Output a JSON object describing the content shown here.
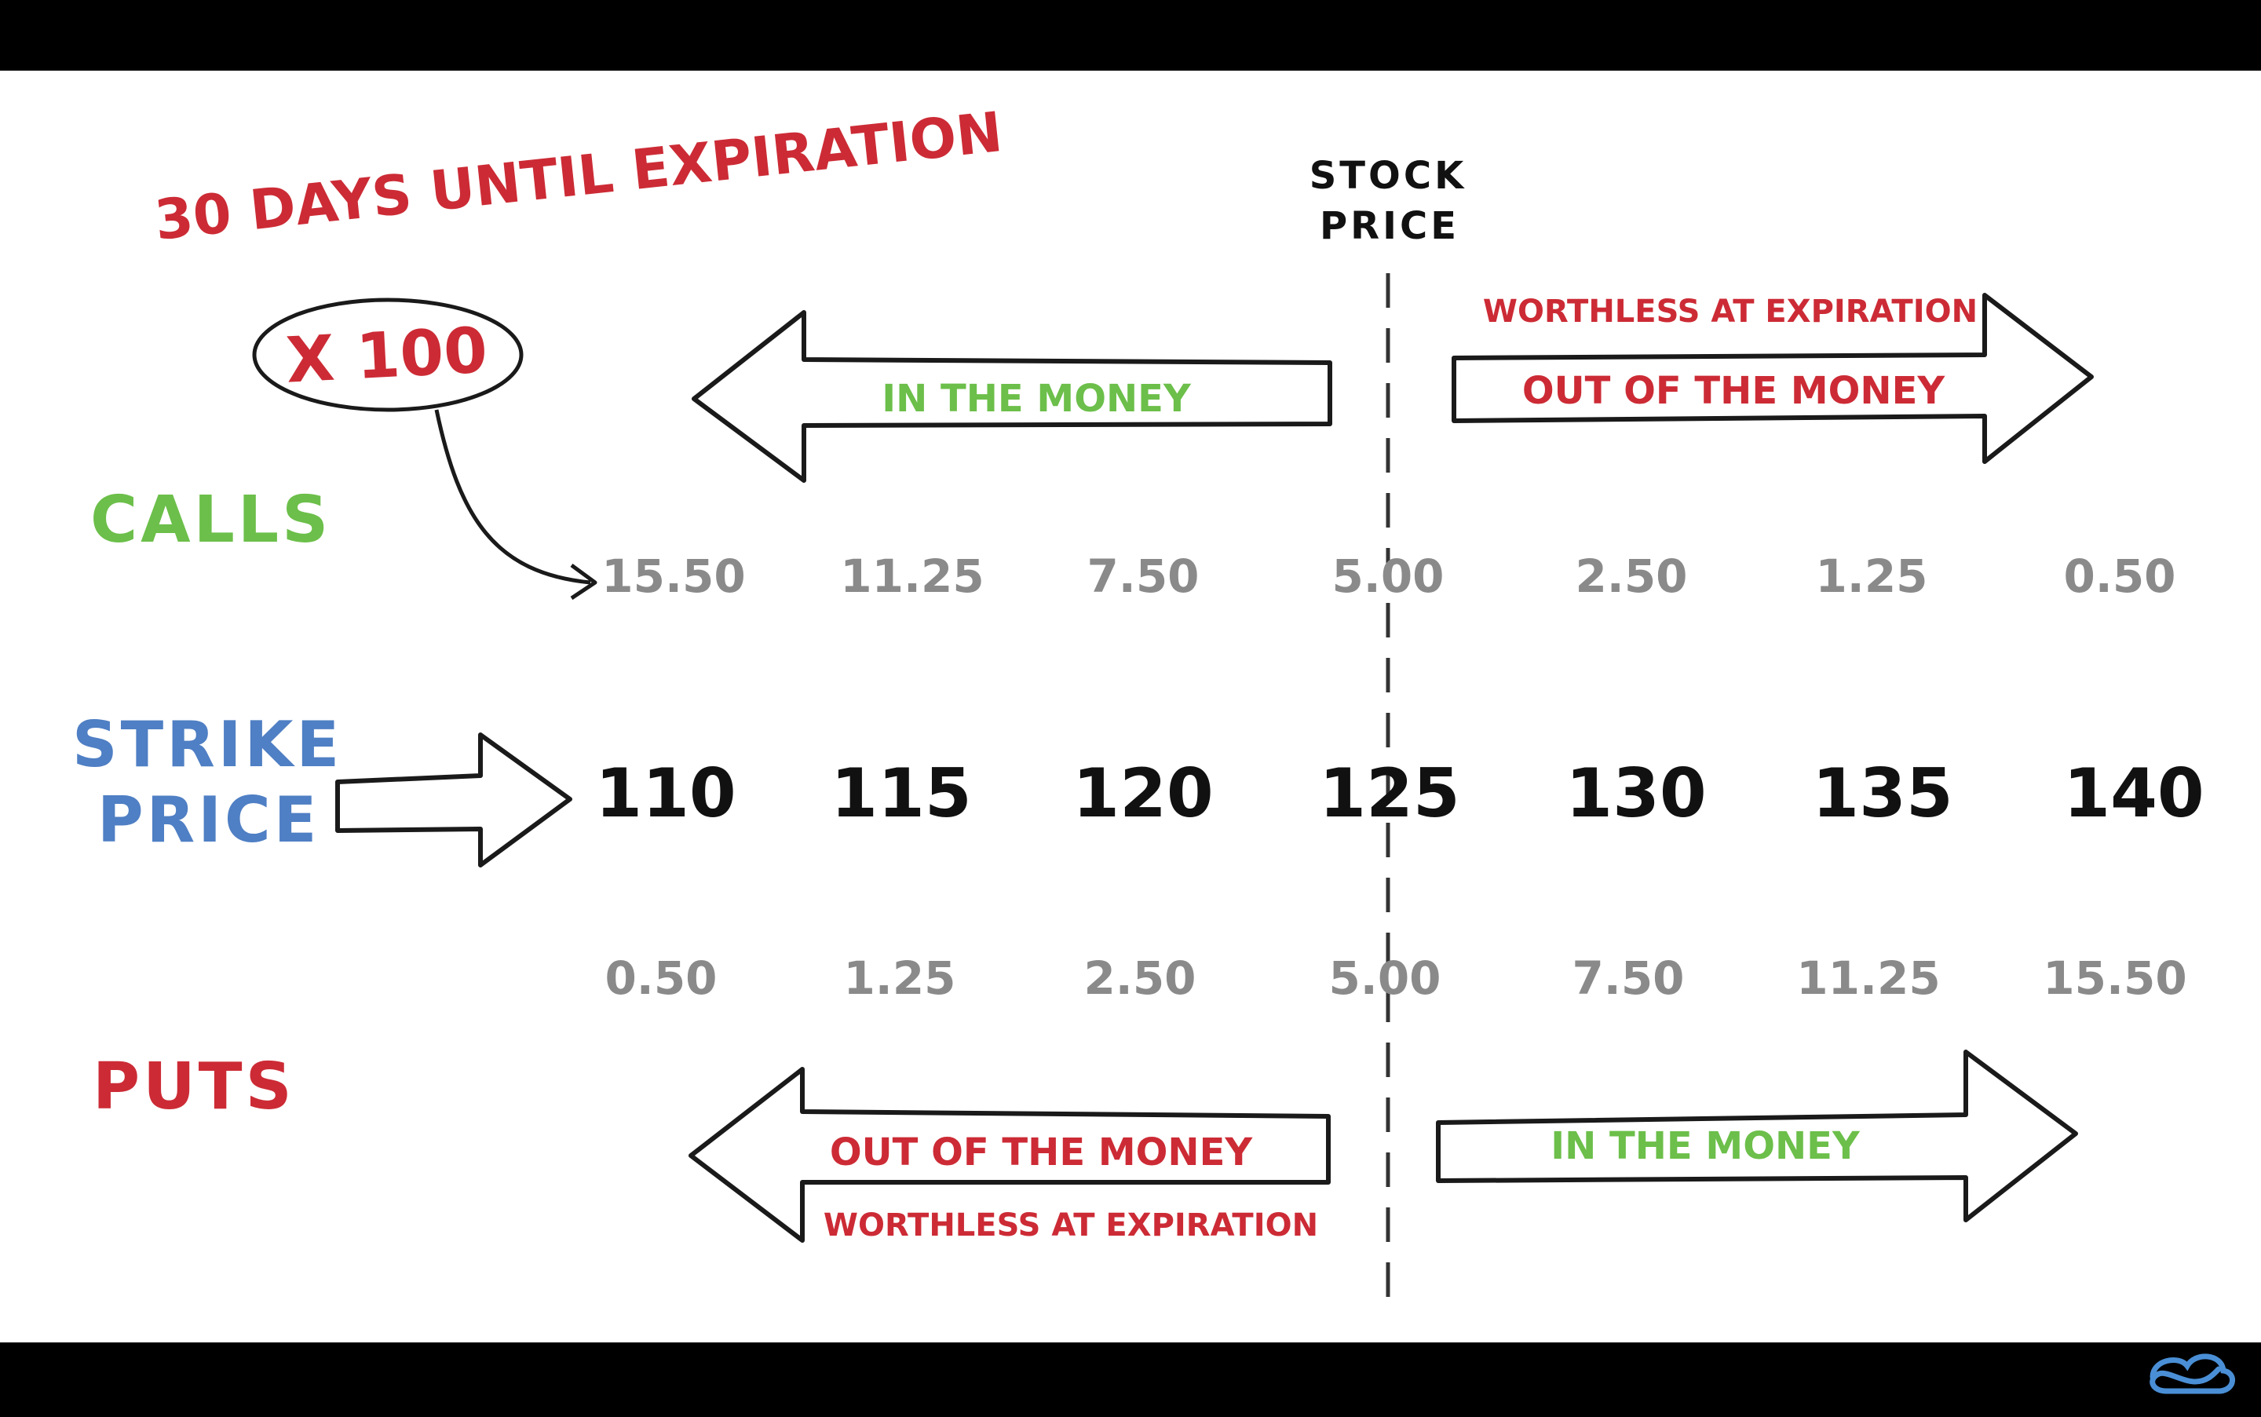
{
  "title": "30 DAYS UNTIL EXPIRATION",
  "stock_price_label": [
    "STOCK",
    "PRICE"
  ],
  "multiplier": "X 100",
  "rows": {
    "calls": "CALLS",
    "strike": [
      "STRIKE",
      "PRICE"
    ],
    "puts": "PUTS"
  },
  "calls_premiums": [
    "15.50",
    "11.25",
    "7.50",
    "5.00",
    "2.50",
    "1.25",
    "0.50"
  ],
  "strikes": [
    "110",
    "115",
    "120",
    "125",
    "130",
    "135",
    "140"
  ],
  "puts_premiums": [
    "0.50",
    "1.25",
    "2.50",
    "5.00",
    "7.50",
    "11.25",
    "15.50"
  ],
  "calls_arrows": {
    "left_label": "IN THE MONEY",
    "right_label": "OUT OF THE MONEY",
    "right_note": "WORTHLESS AT EXPIRATION"
  },
  "puts_arrows": {
    "left_label": "OUT OF THE MONEY",
    "left_note": "WORTHLESS AT EXPIRATION",
    "right_label": "IN THE MONEY"
  },
  "colors": {
    "red": "#cc2b35",
    "green": "#6cbf4a",
    "blue": "#4f7fc4",
    "grey": "#8a8a8a"
  },
  "icons": [
    "logo-icon"
  ]
}
